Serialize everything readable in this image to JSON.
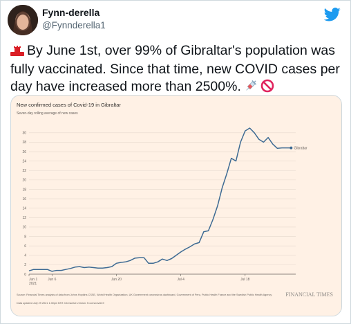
{
  "tweet": {
    "display_name": "Fynn-derella",
    "handle": "@Fynnderella1",
    "text": "By June 1st, over 99% of Gibraltar's population was fully vaccinated. Since that time, new COVID cases per day have increased more than 2500%."
  },
  "icons": {
    "flag": "gibraltar-flag-icon",
    "syringe": "syringe-icon",
    "prohibited": "prohibited-icon",
    "brand": "twitter-bird-icon"
  },
  "colors": {
    "twitter_blue": "#1d9bf0",
    "ft_background": "#fff1e5",
    "line": "#3d6a93"
  },
  "chart_data": {
    "type": "line",
    "title": "New confirmed cases of Covid-19 in Gibraltar",
    "subtitle": "Seven-day rolling average of new cases",
    "series_label": "Gibraltar",
    "y_ticks": [
      0,
      2,
      4,
      6,
      8,
      10,
      12,
      14,
      16,
      18,
      20,
      22,
      24,
      26,
      28,
      30
    ],
    "ylim": [
      0,
      31
    ],
    "x_tick_labels": [
      "Jun 1\n2021",
      "Jun 6",
      "Jun 20",
      "Jul 4",
      "Jul 18"
    ],
    "x_tick_days": [
      0,
      5,
      19,
      33,
      47
    ],
    "x_range": [
      0,
      58
    ],
    "series": [
      {
        "name": "Gibraltar",
        "x": [
          0,
          1,
          2,
          3,
          4,
          5,
          6,
          7,
          8,
          9,
          10,
          11,
          12,
          13,
          14,
          15,
          16,
          17,
          18,
          19,
          20,
          21,
          22,
          23,
          24,
          25,
          26,
          27,
          28,
          29,
          30,
          31,
          32,
          33,
          34,
          35,
          36,
          37,
          38,
          39,
          40,
          41,
          42,
          43,
          44,
          45,
          46,
          47,
          48,
          49,
          50,
          51,
          52,
          53,
          54,
          55,
          56,
          57
        ],
        "y": [
          0.7,
          1.0,
          1.0,
          1.0,
          1.0,
          0.6,
          0.8,
          0.8,
          1.0,
          1.2,
          1.5,
          1.6,
          1.4,
          1.5,
          1.4,
          1.3,
          1.3,
          1.4,
          1.6,
          2.3,
          2.5,
          2.6,
          2.9,
          3.4,
          3.5,
          3.5,
          2.3,
          2.3,
          2.6,
          3.2,
          2.9,
          3.3,
          4.0,
          4.7,
          5.3,
          5.8,
          6.4,
          6.7,
          9.0,
          9.2,
          11.6,
          14.5,
          18.3,
          21.3,
          24.6,
          24.0,
          28.0,
          30.4,
          31.0,
          30.0,
          28.6,
          28.0,
          29.0,
          27.6,
          26.7,
          26.8,
          26.8,
          26.8
        ]
      }
    ],
    "source": "Source: Financial Times analysis of data from Johns Hopkins CSSE, World Health Organization, UK Government coronavirus dashboard, Government of Peru, Public Health France and the Swedish Public Health Agency",
    "updated": "Data updated July 29 2021 1:30pm BST. Interactive version: ft.com/covid19",
    "brand": "FINANCIAL TIMES"
  }
}
